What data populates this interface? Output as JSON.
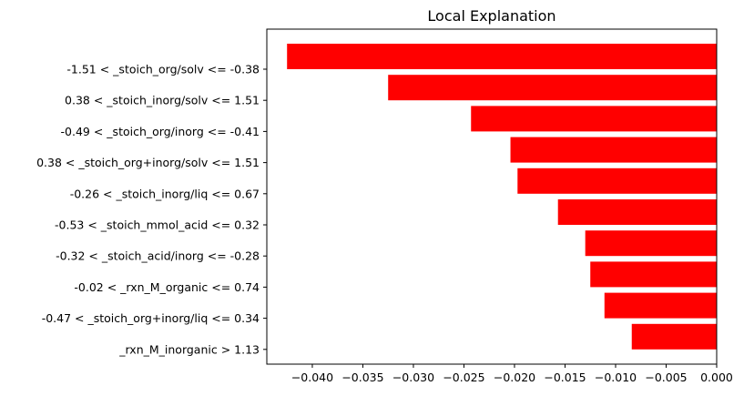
{
  "chart_data": {
    "type": "bar",
    "orientation": "horizontal",
    "title": "Local Explanation",
    "xlabel": "",
    "ylabel": "",
    "categories": [
      "-1.51 < _stoich_org/solv <= -0.38",
      "0.38 < _stoich_inorg/solv <= 1.51",
      "-0.49 < _stoich_org/inorg <= -0.41",
      "0.38 < _stoich_org+inorg/solv <= 1.51",
      "-0.26 < _stoich_inorg/liq <= 0.67",
      "-0.53 < _stoich_mmol_acid <= 0.32",
      "-0.32 < _stoich_acid/inorg <= -0.28",
      "-0.02 < _rxn_M_organic <= 0.74",
      "-0.47 < _stoich_org+inorg/liq <= 0.34",
      "_rxn_M_inorganic > 1.13"
    ],
    "values": [
      -0.0425,
      -0.0325,
      -0.0243,
      -0.0204,
      -0.0197,
      -0.0157,
      -0.013,
      -0.0125,
      -0.0111,
      -0.0084
    ],
    "xlim": [
      -0.0445,
      0.0
    ],
    "xticks": [
      -0.04,
      -0.035,
      -0.03,
      -0.025,
      -0.02,
      -0.015,
      -0.01,
      -0.005,
      0.0
    ],
    "xtick_labels": [
      "−0.040",
      "−0.035",
      "−0.030",
      "−0.025",
      "−0.020",
      "−0.015",
      "−0.010",
      "−0.005",
      "0.000"
    ],
    "bar_color": "#ff0000",
    "grid": false,
    "legend": "none"
  }
}
